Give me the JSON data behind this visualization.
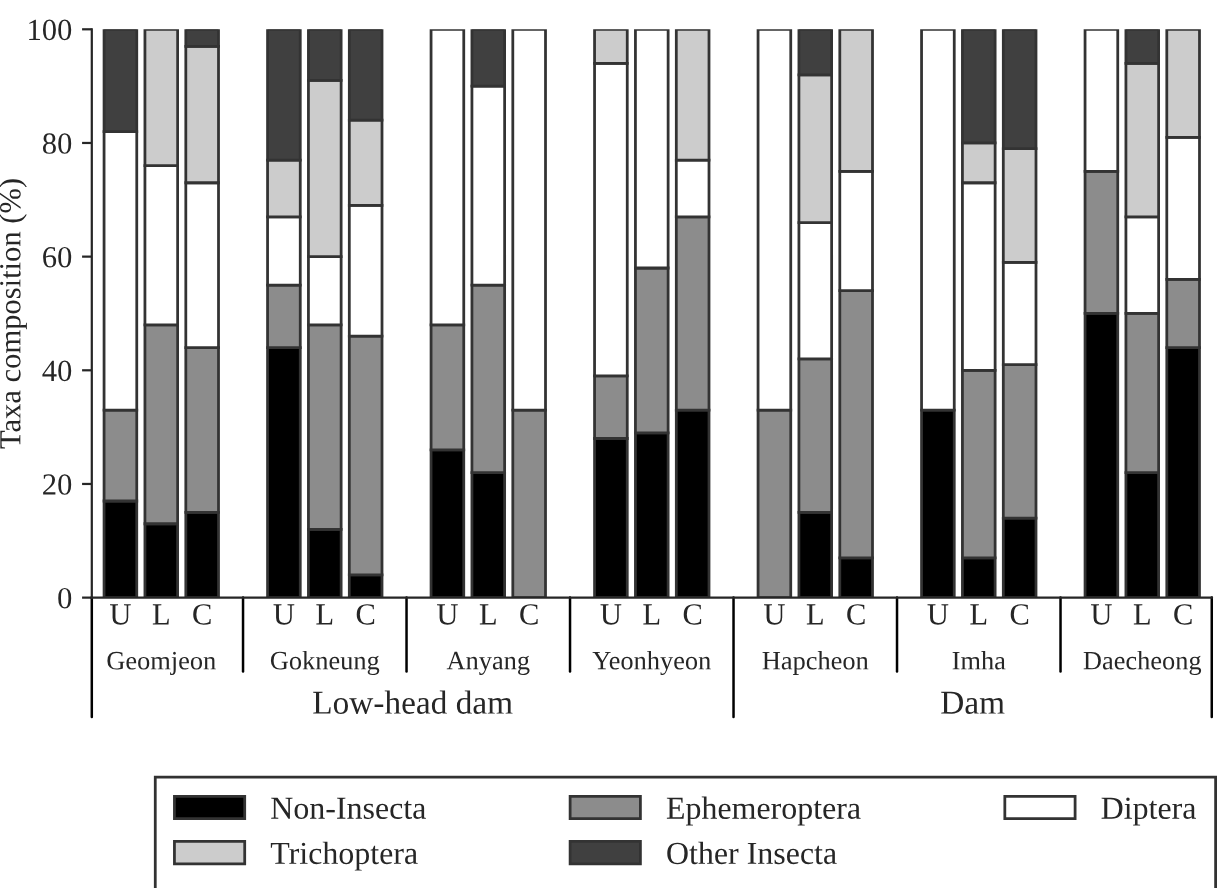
{
  "chart_data": {
    "type": "bar",
    "stacked": true,
    "ylabel": "Taxa composition (%)",
    "categories": [
      "U",
      "L",
      "C",
      "U",
      "L",
      "C",
      "U",
      "L",
      "C",
      "U",
      "L",
      "C",
      "U",
      "L",
      "C",
      "U",
      "L",
      "C",
      "U",
      "L",
      "C"
    ],
    "series": [
      {
        "name": "Non-Insecta",
        "color": "#000000",
        "values": [
          17,
          13,
          15,
          44,
          12,
          4,
          26,
          22,
          0,
          28,
          29,
          33,
          0,
          15,
          7,
          33,
          7,
          14,
          50,
          22,
          44
        ]
      },
      {
        "name": "Ephemeroptera",
        "color": "#8c8c8c",
        "values": [
          16,
          35,
          29,
          11,
          36,
          42,
          22,
          33,
          33,
          11,
          29,
          34,
          33,
          27,
          47,
          0,
          33,
          27,
          25,
          28,
          12
        ]
      },
      {
        "name": "Diptera",
        "color": "#ffffff",
        "values": [
          49,
          28,
          29,
          12,
          12,
          23,
          52,
          35,
          67,
          55,
          42,
          10,
          67,
          24,
          21,
          67,
          33,
          18,
          25,
          17,
          25
        ]
      },
      {
        "name": "Trichoptera",
        "color": "#cccccc",
        "values": [
          0,
          24,
          24,
          10,
          31,
          15,
          0,
          0,
          0,
          6,
          0,
          23,
          0,
          26,
          25,
          0,
          7,
          20,
          0,
          27,
          19
        ]
      },
      {
        "name": "Other Insecta",
        "color": "#404040",
        "values": [
          18,
          0,
          3,
          23,
          9,
          16,
          0,
          10,
          0,
          0,
          0,
          0,
          0,
          8,
          0,
          0,
          20,
          21,
          0,
          6,
          0
        ]
      }
    ],
    "ylim": [
      0,
      100
    ],
    "yticks": [
      0,
      20,
      40,
      60,
      80,
      100
    ],
    "grid": false,
    "legend": "bottom",
    "annotations": [
      "Geomjeon",
      "Gokneung",
      "Anyang",
      "Yeonhyeon",
      "Hapcheon",
      "Imha",
      "Daecheong",
      "Low-head dam",
      "Dam"
    ]
  }
}
